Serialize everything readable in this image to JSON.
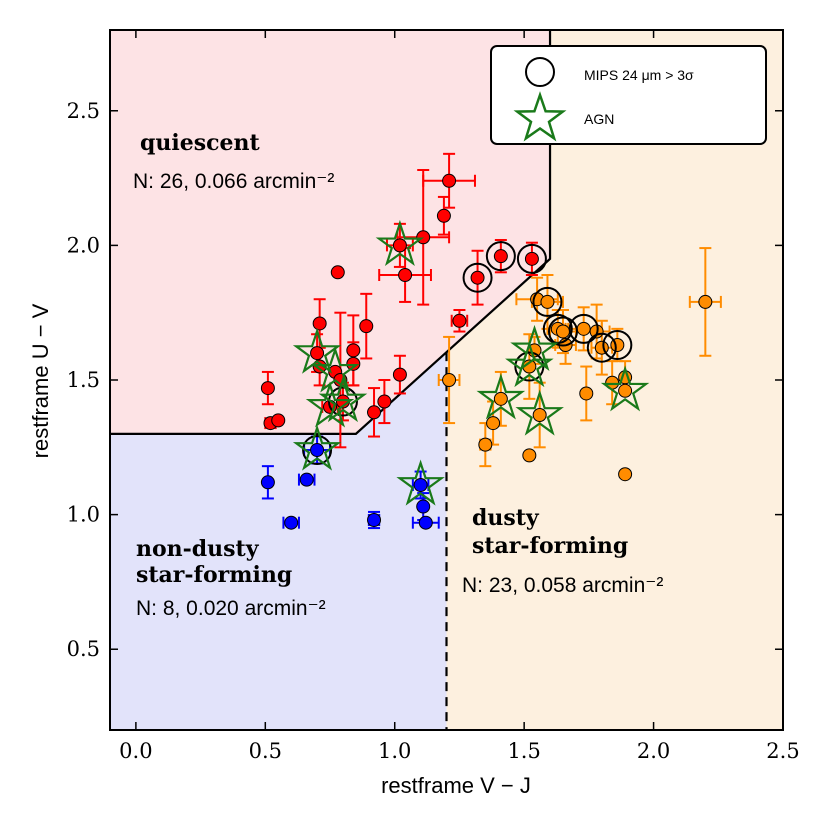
{
  "chart_data": {
    "type": "scatter",
    "xlabel": "restframe V − J",
    "ylabel": "restframe U − V",
    "xlim": [
      -0.1,
      2.5
    ],
    "ylim": [
      0.2,
      2.8
    ],
    "xticks": [
      "0.0",
      "0.5",
      "1.0",
      "1.5",
      "2.0",
      "2.5"
    ],
    "yticks": [
      "0.5",
      "1.0",
      "1.5",
      "2.0",
      "2.5"
    ],
    "xtick_values": [
      0.0,
      0.5,
      1.0,
      1.5,
      2.0,
      2.5
    ],
    "ytick_values": [
      0.5,
      1.0,
      1.5,
      2.0,
      2.5
    ],
    "grid": false,
    "legend_position": "top-right",
    "legend": [
      {
        "label": "MIPS 24 μm > 3σ",
        "marker": "open-circle",
        "color": "#000000"
      },
      {
        "label": "AGN",
        "marker": "open-star",
        "color": "#1a7a1a"
      }
    ],
    "regions": [
      {
        "name": "quiescent",
        "fill": "#fde3e5",
        "label_title": "quiescent",
        "label_stats": "N: 26, 0.066 arcmin⁻²"
      },
      {
        "name": "non-dusty star-forming",
        "fill": "#e2e3fa",
        "label_title": "non-dusty star-forming",
        "label_stats": "N: 8, 0.020 arcmin⁻²"
      },
      {
        "name": "dusty star-forming",
        "fill": "#fdf0df",
        "label_title": "dusty star-forming",
        "label_stats": "N: 23, 0.058 arcmin⁻²"
      }
    ],
    "boundary": {
      "wedge": [
        [
          -0.1,
          1.3
        ],
        [
          0.85,
          1.3
        ],
        [
          1.6,
          1.95
        ],
        [
          1.6,
          2.8
        ]
      ],
      "split_line_x": 1.2,
      "split_line_y_range": [
        0.2,
        1.6
      ]
    },
    "colors": {
      "quiescent": "#ff0000",
      "non_dusty": "#0000ff",
      "dusty": "#ff8c00",
      "agn": "#1a7a1a",
      "mips": "#000000"
    },
    "series": [
      {
        "group": "quiescent",
        "points": [
          {
            "x": 0.51,
            "y": 1.47,
            "ey": 0.06
          },
          {
            "x": 0.52,
            "y": 1.34,
            "ex": 0.02
          },
          {
            "x": 0.55,
            "y": 1.35
          },
          {
            "x": 0.7,
            "y": 1.6,
            "ey": 0.07,
            "agn": true
          },
          {
            "x": 0.71,
            "y": 1.71,
            "ey": 0.09
          },
          {
            "x": 0.71,
            "y": 1.55,
            "ey": 0.07
          },
          {
            "x": 0.75,
            "y": 1.4,
            "ex": 0.03,
            "agn": true
          },
          {
            "x": 0.77,
            "y": 1.53,
            "agn": true
          },
          {
            "x": 0.78,
            "y": 1.9
          },
          {
            "x": 0.8,
            "y": 1.42,
            "ey": 0.07,
            "mips": true,
            "agn": true
          },
          {
            "x": 0.79,
            "y": 1.5,
            "ey": 0.25
          },
          {
            "x": 0.84,
            "y": 1.61,
            "ey": 0.13
          },
          {
            "x": 0.84,
            "y": 1.56,
            "ey": 0.08
          },
          {
            "x": 0.89,
            "y": 1.7,
            "ey": 0.12
          },
          {
            "x": 0.92,
            "y": 1.38,
            "ey": 0.09
          },
          {
            "x": 0.96,
            "y": 1.42,
            "ey": 0.08
          },
          {
            "x": 1.02,
            "y": 1.52,
            "ey": 0.07
          },
          {
            "x": 1.02,
            "y": 2.0,
            "ex": 0.05,
            "ey": 0.08,
            "agn": true
          },
          {
            "x": 1.04,
            "y": 1.89,
            "ex": 0.1,
            "ey": 0.1
          },
          {
            "x": 1.11,
            "y": 2.03,
            "ex": 0.1,
            "ey": 0.25
          },
          {
            "x": 1.19,
            "y": 2.11,
            "ey": 0.07
          },
          {
            "x": 1.21,
            "y": 2.24,
            "ex": 0.1,
            "ey": 0.1
          },
          {
            "x": 1.25,
            "y": 1.72,
            "ex": 0.03,
            "ey": 0.04
          },
          {
            "x": 1.32,
            "y": 1.88,
            "ey": 0.1,
            "mips": true
          },
          {
            "x": 1.41,
            "y": 1.96,
            "ey": 0.06,
            "mips": true
          },
          {
            "x": 1.53,
            "y": 1.95,
            "ey": 0.06,
            "mips": true
          }
        ]
      },
      {
        "group": "non_dusty",
        "points": [
          {
            "x": 0.51,
            "y": 1.12,
            "ey": 0.06
          },
          {
            "x": 0.6,
            "y": 0.97,
            "ex": 0.03
          },
          {
            "x": 0.66,
            "y": 1.13,
            "ex": 0.03
          },
          {
            "x": 0.7,
            "y": 1.24,
            "ex": 0.05,
            "ey": 0.05,
            "agn": true,
            "mips": true
          },
          {
            "x": 0.92,
            "y": 0.98,
            "ex": 0.02,
            "ey": 0.03
          },
          {
            "x": 1.1,
            "y": 1.11,
            "ex": 0.03,
            "ey": 0.05,
            "agn": true
          },
          {
            "x": 1.11,
            "y": 1.03,
            "ey": 0.05
          },
          {
            "x": 1.12,
            "y": 0.97,
            "ex": 0.05
          }
        ]
      },
      {
        "group": "dusty",
        "points": [
          {
            "x": 1.21,
            "y": 1.5,
            "ex": 0.04,
            "ey": 0.16
          },
          {
            "x": 1.35,
            "y": 1.26,
            "ex": 0.02,
            "ey": 0.08
          },
          {
            "x": 1.38,
            "y": 1.34,
            "ey": 0.08
          },
          {
            "x": 1.41,
            "y": 1.43,
            "ey": 0.1,
            "agn": true
          },
          {
            "x": 1.52,
            "y": 1.22
          },
          {
            "x": 1.52,
            "y": 1.55,
            "ey": 0.12,
            "mips": true,
            "agn": true
          },
          {
            "x": 1.54,
            "y": 1.61,
            "ey": 0.05,
            "agn": true
          },
          {
            "x": 1.56,
            "y": 1.37,
            "ey": 0.12,
            "agn": true
          },
          {
            "x": 1.55,
            "y": 1.8,
            "ex": 0.08,
            "ey": 0.08
          },
          {
            "x": 1.59,
            "y": 1.79,
            "ex": 0.06,
            "ey": 0.1,
            "mips": true
          },
          {
            "x": 1.63,
            "y": 1.69,
            "ex": 0.04,
            "ey": 0.07,
            "mips": true
          },
          {
            "x": 1.65,
            "y": 1.68,
            "ex": 0.05,
            "ey": 0.08,
            "mips": true
          },
          {
            "x": 1.66,
            "y": 1.63,
            "ex": 0.04,
            "ey": 0.07
          },
          {
            "x": 1.73,
            "y": 1.69,
            "ex": 0.07,
            "ey": 0.08,
            "mips": true
          },
          {
            "x": 1.74,
            "y": 1.45,
            "ey": 0.1
          },
          {
            "x": 1.78,
            "y": 1.68,
            "ex": 0.05,
            "ey": 0.1
          },
          {
            "x": 1.8,
            "y": 1.62,
            "ex": 0.04,
            "ey": 0.1,
            "mips": true
          },
          {
            "x": 1.84,
            "y": 1.49,
            "ey": 0.08
          },
          {
            "x": 1.86,
            "y": 1.63,
            "ey": 0.06,
            "mips": true
          },
          {
            "x": 1.89,
            "y": 1.51,
            "ey": 0.06
          },
          {
            "x": 1.89,
            "y": 1.46,
            "agn": true
          },
          {
            "x": 1.89,
            "y": 1.15
          },
          {
            "x": 2.2,
            "y": 1.79,
            "ex": 0.06,
            "ey": 0.2
          }
        ]
      }
    ]
  }
}
